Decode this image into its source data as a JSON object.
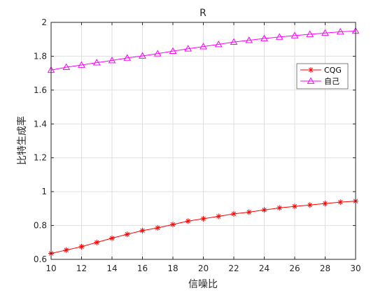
{
  "chart_data": {
    "type": "line",
    "title": "R",
    "xlabel": "信噪比",
    "ylabel": "比特生成率",
    "xlim": [
      10,
      30
    ],
    "ylim": [
      0.6,
      2
    ],
    "x_ticks": [
      10,
      12,
      14,
      16,
      18,
      20,
      22,
      24,
      26,
      28,
      30
    ],
    "y_ticks": [
      0.6,
      0.8,
      1,
      1.2,
      1.4,
      1.6,
      1.8,
      2
    ],
    "grid": true,
    "legend_position": "upper-right",
    "x": [
      10,
      11,
      12,
      13,
      14,
      15,
      16,
      17,
      18,
      19,
      20,
      21,
      22,
      23,
      24,
      25,
      26,
      27,
      28,
      29,
      30
    ],
    "series": [
      {
        "name": "CQG",
        "color": "#ff0000",
        "marker": "asterisk",
        "values": [
          0.635,
          0.655,
          0.675,
          0.7,
          0.725,
          0.748,
          0.77,
          0.786,
          0.806,
          0.826,
          0.84,
          0.854,
          0.869,
          0.879,
          0.892,
          0.904,
          0.913,
          0.921,
          0.93,
          0.938,
          0.944
        ]
      },
      {
        "name": "自己",
        "color": "#ff00ff",
        "marker": "triangle",
        "values": [
          1.718,
          1.735,
          1.748,
          1.762,
          1.775,
          1.79,
          1.802,
          1.815,
          1.83,
          1.844,
          1.857,
          1.87,
          1.884,
          1.894,
          1.905,
          1.914,
          1.922,
          1.93,
          1.937,
          1.944,
          1.949
        ]
      }
    ]
  }
}
